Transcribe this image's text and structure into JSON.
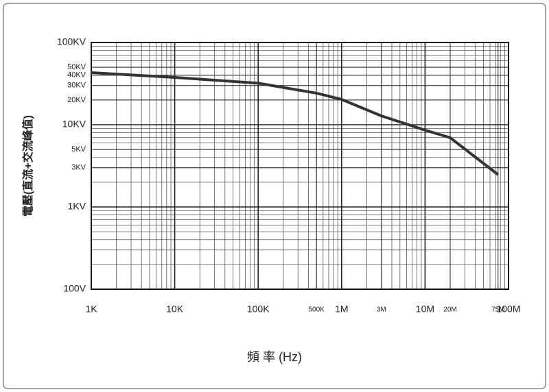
{
  "chart_data": {
    "type": "line",
    "x_label": "頻 率 (Hz)",
    "y_label": "電壓(直流+交流峰值)",
    "x": [
      1000,
      10000,
      100000,
      500000,
      1000000,
      3000000,
      10000000,
      20000000,
      75000000
    ],
    "series": [
      {
        "name": "電壓",
        "color": "#333333",
        "values": [
          43000,
          37600,
          32000,
          24200,
          20300,
          12800,
          8600,
          6950,
          2470
        ]
      }
    ],
    "xlim": [
      1000,
      100000000
    ],
    "ylim": [
      100,
      100000
    ],
    "log_x": true,
    "log_y": true,
    "grid": true,
    "xticks": [
      {
        "value": 1000,
        "label": "1K"
      },
      {
        "value": 10000,
        "label": "10K"
      },
      {
        "value": 100000,
        "label": "100K"
      },
      {
        "value": 500000,
        "label": "500K"
      },
      {
        "value": 1000000,
        "label": "1M"
      },
      {
        "value": 3000000,
        "label": "3M"
      },
      {
        "value": 10000000,
        "label": "10M"
      },
      {
        "value": 20000000,
        "label": "20M"
      },
      {
        "value": 75000000,
        "label": "75M"
      },
      {
        "value": 100000000,
        "label": "100M"
      }
    ],
    "yticks": [
      {
        "value": 100000,
        "label": "100KV"
      },
      {
        "value": 50000,
        "label": "50KV"
      },
      {
        "value": 40000,
        "label": "40KV"
      },
      {
        "value": 30000,
        "label": "30KV"
      },
      {
        "value": 20000,
        "label": "20KV"
      },
      {
        "value": 10000,
        "label": "10KV"
      },
      {
        "value": 5000,
        "label": "5KV"
      },
      {
        "value": 3000,
        "label": "3KV"
      },
      {
        "value": 1000,
        "label": "1KV"
      },
      {
        "value": 100,
        "label": "100V"
      }
    ]
  }
}
